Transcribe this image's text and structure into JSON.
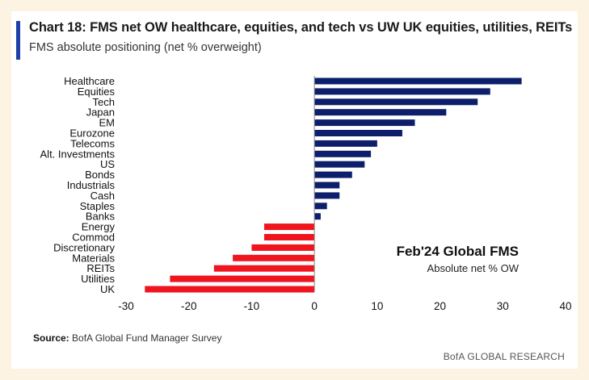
{
  "header": {
    "title": "Chart 18: FMS net OW healthcare, equities, and tech vs UW UK equities, utilities, REITs",
    "subtitle": "FMS absolute positioning (net % overweight)"
  },
  "annotation": {
    "title": "Feb'24 Global FMS",
    "subtitle": "Absolute net % OW"
  },
  "footer": {
    "source_label": "Source:",
    "source_text": " BofA Global Fund Manager Survey",
    "brand": "BofA GLOBAL RESEARCH"
  },
  "colors": {
    "positive": "#0d1f6b",
    "negative": "#f0141e",
    "accent": "#1f3fa8",
    "background": "#fdf3e3"
  },
  "chart_data": {
    "type": "bar",
    "orientation": "horizontal",
    "title": "Chart 18: FMS net OW healthcare, equities, and tech vs UW UK equities, utilities, REITs",
    "subtitle": "FMS absolute positioning (net % overweight)",
    "categories": [
      "Healthcare",
      "Equities",
      "Tech",
      "Japan",
      "EM",
      "Eurozone",
      "Telecoms",
      "Alt. Investments",
      "US",
      "Bonds",
      "Industrials",
      "Cash",
      "Staples",
      "Banks",
      "Energy",
      "Commod",
      "Discretionary",
      "Materials",
      "REITs",
      "Utilities",
      "UK"
    ],
    "values": [
      33,
      28,
      26,
      21,
      16,
      14,
      10,
      9,
      8,
      6,
      4,
      4,
      2,
      1,
      -8,
      -8,
      -10,
      -13,
      -16,
      -23,
      -27
    ],
    "xlim": [
      -30,
      40
    ],
    "xticks": [
      -30,
      -20,
      -10,
      0,
      10,
      20,
      30,
      40
    ],
    "xlabel": "",
    "ylabel": "",
    "grid": false
  }
}
